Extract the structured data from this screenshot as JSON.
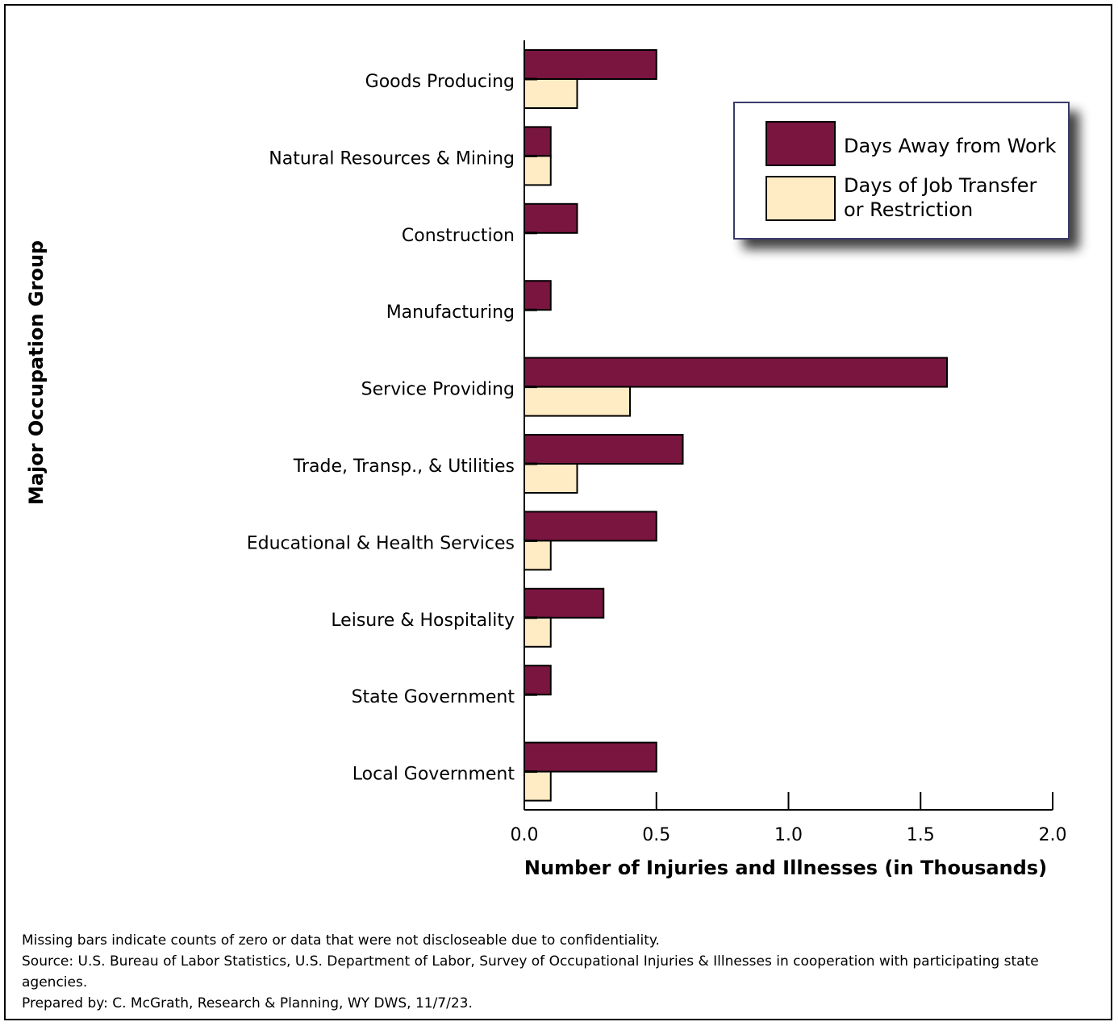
{
  "chart_data": {
    "type": "bar",
    "orientation": "horizontal",
    "categories": [
      "Goods Producing",
      "Natural Resources & Mining",
      "Construction",
      "Manufacturing",
      "Service Providing",
      "Trade, Transp., & Utilities",
      "Educational & Health Services",
      "Leisure & Hospitality",
      "State Government",
      "Local Government"
    ],
    "series": [
      {
        "name": "Days Away from Work",
        "color": "#7a1540",
        "values": [
          0.5,
          0.1,
          0.2,
          0.1,
          1.6,
          0.6,
          0.5,
          0.3,
          0.1,
          0.5
        ]
      },
      {
        "name": "Days of Job Transfer or Restriction",
        "color": "#ffebc4",
        "values": [
          0.2,
          0.1,
          null,
          null,
          0.4,
          0.2,
          0.1,
          0.1,
          null,
          0.1
        ]
      }
    ],
    "xlabel": "Number of Injuries and Illnesses (in Thousands)",
    "ylabel": "Major Occupation Group",
    "xlim": [
      0,
      2.0
    ],
    "xticks": [
      "0.0",
      "0.5",
      "1.0",
      "1.5",
      "2.0"
    ],
    "grid": false,
    "legend_position": "top-right",
    "legend": {
      "item1": "Days Away from Work",
      "item2_line1": "Days of Job Transfer",
      "item2_line2": "or Restriction"
    }
  },
  "notes": {
    "line1": "Missing bars indicate counts of zero or data that were not discloseable due to confidentiality.",
    "line2": "Source: U.S. Bureau of Labor Statistics, U.S. Department of Labor, Survey of Occupational Injuries & Illnesses in cooperation with participating state agencies.",
    "line3": "Prepared by: C. McGrath, Research & Planning, WY DWS, 11/7/23."
  }
}
